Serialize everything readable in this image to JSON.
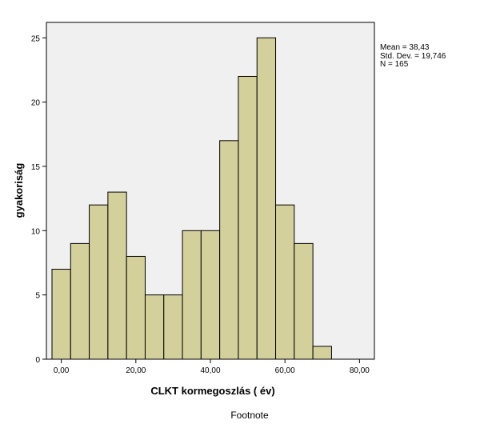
{
  "chart_data": {
    "type": "bar",
    "subtype": "histogram",
    "xlabel": "CLKT kormegoszlás ( év)",
    "ylabel": "gyakoriság",
    "bin_width": 5,
    "bins": [
      {
        "start": -2.5,
        "end": 2.5,
        "count": 7
      },
      {
        "start": 2.5,
        "end": 7.5,
        "count": 9
      },
      {
        "start": 7.5,
        "end": 12.5,
        "count": 12
      },
      {
        "start": 12.5,
        "end": 17.5,
        "count": 13
      },
      {
        "start": 17.5,
        "end": 22.5,
        "count": 8
      },
      {
        "start": 22.5,
        "end": 27.5,
        "count": 5
      },
      {
        "start": 27.5,
        "end": 32.5,
        "count": 5
      },
      {
        "start": 32.5,
        "end": 37.5,
        "count": 10
      },
      {
        "start": 37.5,
        "end": 42.5,
        "count": 10
      },
      {
        "start": 42.5,
        "end": 47.5,
        "count": 17
      },
      {
        "start": 47.5,
        "end": 52.5,
        "count": 22
      },
      {
        "start": 52.5,
        "end": 57.5,
        "count": 25
      },
      {
        "start": 57.5,
        "end": 62.5,
        "count": 12
      },
      {
        "start": 62.5,
        "end": 67.5,
        "count": 9
      },
      {
        "start": 67.5,
        "end": 72.5,
        "count": 1
      }
    ],
    "xlim": [
      -4,
      84
    ],
    "ylim": [
      0,
      26.2
    ],
    "x_ticks": [
      0,
      20,
      40,
      60,
      80
    ],
    "x_tick_labels": [
      "0,00",
      "20,00",
      "40,00",
      "60,00",
      "80,00"
    ],
    "y_ticks": [
      0,
      5,
      10,
      15,
      20,
      25
    ],
    "y_tick_labels": [
      "0",
      "5",
      "10",
      "15",
      "20",
      "25"
    ],
    "stats": [
      "Mean = 38,43",
      "Std. Dev. = 19,746",
      "N = 165"
    ],
    "footnote": "Footnote",
    "grid": false,
    "colors": {
      "bar_fill": "#d4d09c",
      "bar_stroke": "#000000",
      "plot_background": "#f0f0f0"
    }
  }
}
